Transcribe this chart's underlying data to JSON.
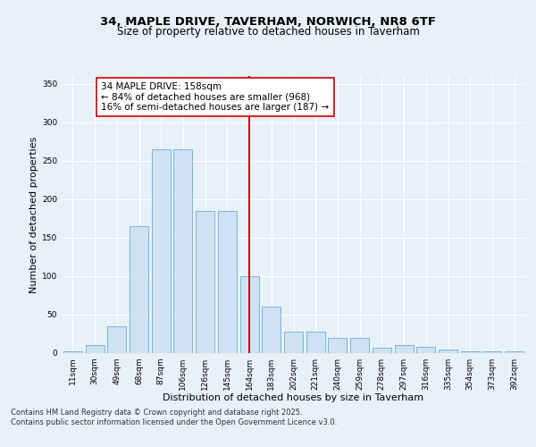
{
  "title": "34, MAPLE DRIVE, TAVERHAM, NORWICH, NR8 6TF",
  "subtitle": "Size of property relative to detached houses in Taverham",
  "xlabel": "Distribution of detached houses by size in Taverham",
  "ylabel": "Number of detached properties",
  "bar_labels": [
    "11sqm",
    "30sqm",
    "49sqm",
    "68sqm",
    "87sqm",
    "106sqm",
    "126sqm",
    "145sqm",
    "164sqm",
    "183sqm",
    "202sqm",
    "221sqm",
    "240sqm",
    "259sqm",
    "278sqm",
    "297sqm",
    "316sqm",
    "335sqm",
    "354sqm",
    "373sqm",
    "392sqm"
  ],
  "bar_heights": [
    2,
    10,
    35,
    165,
    265,
    265,
    185,
    185,
    100,
    60,
    28,
    28,
    20,
    20,
    7,
    10,
    8,
    5,
    2,
    2,
    2
  ],
  "bar_color": "#cfe2f3",
  "bar_edge_color": "#6baed6",
  "vline_x": 8,
  "vline_color": "#cc0000",
  "annotation_text": "34 MAPLE DRIVE: 158sqm\n← 84% of detached houses are smaller (968)\n16% of semi-detached houses are larger (187) →",
  "annotation_box_color": "#ffffff",
  "annotation_box_edge": "#cc0000",
  "ylim": [
    0,
    360
  ],
  "yticks": [
    0,
    50,
    100,
    150,
    200,
    250,
    300,
    350
  ],
  "bg_color": "#e8f0f8",
  "plot_bg_color": "#e8f0f8",
  "footer_text": "Contains HM Land Registry data © Crown copyright and database right 2025.\nContains public sector information licensed under the Open Government Licence v3.0.",
  "title_fontsize": 9.5,
  "subtitle_fontsize": 8.5,
  "xlabel_fontsize": 8,
  "ylabel_fontsize": 8,
  "tick_fontsize": 6.5,
  "annotation_fontsize": 7.5,
  "footer_fontsize": 6
}
